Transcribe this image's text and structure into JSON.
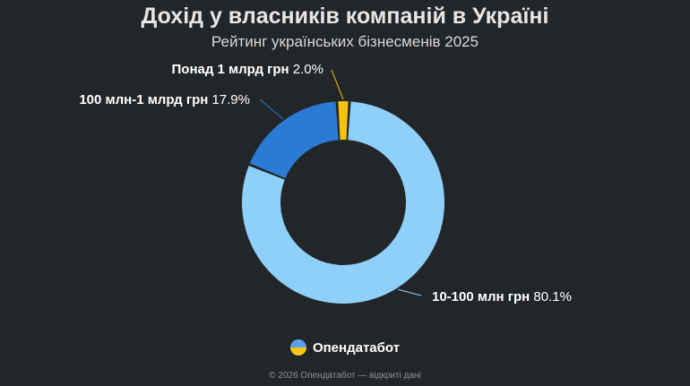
{
  "title": "Дохід у власників компаній в Україні",
  "subtitle": "Рейтинг українських бізнесменів 2025",
  "brand": {
    "name": "Опендатабот",
    "logo_icon": "opendatabot-logo-icon"
  },
  "footer": "© 2026 Опендатабот — відкриті дані",
  "colors": {
    "background": "#232629",
    "segment_large": "#8fd0fb",
    "segment_mid": "#2b7bd6",
    "segment_small": "#f2c20f"
  },
  "chart_data": {
    "type": "pie",
    "style": "donut",
    "title": "Дохід у власників компаній в Україні",
    "subtitle": "Рейтинг українських бізнесменів 2025",
    "slices": [
      {
        "label": "10-100 млн грн",
        "value": 80.1,
        "value_label": "80.1%",
        "color": "#8fd0fb"
      },
      {
        "label": "100 млн-1 млрд грн",
        "value": 17.9,
        "value_label": "17.9%",
        "color": "#2b7bd6"
      },
      {
        "label": "Понад 1 млрд грн",
        "value": 2.0,
        "value_label": "2.0%",
        "color": "#f2c20f"
      }
    ]
  }
}
